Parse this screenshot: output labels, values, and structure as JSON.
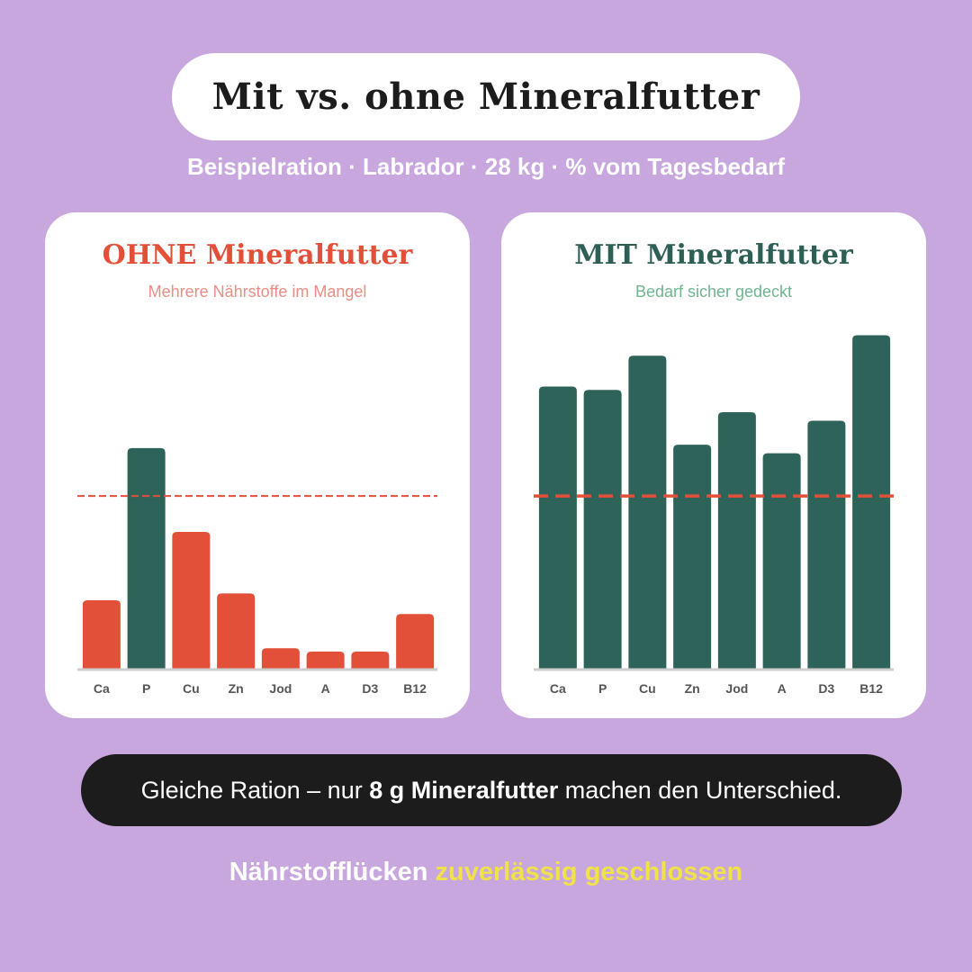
{
  "title": "Mit vs. ohne Mineralfutter",
  "subtitle": "Beispielration · Labrador · 28 kg · % vom Tagesbedarf",
  "colors": {
    "background": "#c7a7dd",
    "deficit": "#e3503a",
    "sufficient": "#2d6358",
    "reference_line": "#e3503a",
    "highlight": "#f1e24a"
  },
  "chart_data": [
    {
      "type": "bar",
      "title": "OHNE Mineralfutter",
      "subtitle": "Mehrere Nährstoffe im Mangel",
      "categories": [
        "Ca",
        "P",
        "Cu",
        "Zn",
        "Jod",
        "A",
        "D3",
        "B12"
      ],
      "values": [
        40,
        129,
        80,
        44,
        12,
        10,
        10,
        32
      ],
      "bar_colors": [
        "#e3503a",
        "#2d6358",
        "#e3503a",
        "#e3503a",
        "#e3503a",
        "#e3503a",
        "#e3503a",
        "#e3503a"
      ],
      "reference_line": 101,
      "ylim": [
        0,
        200
      ],
      "grid": false
    },
    {
      "type": "bar",
      "title": "MIT Mineralfutter",
      "subtitle": "Bedarf sicher gedeckt",
      "categories": [
        "Ca",
        "P",
        "Cu",
        "Zn",
        "Jod",
        "A",
        "D3",
        "B12"
      ],
      "values": [
        165,
        163,
        183,
        131,
        150,
        126,
        145,
        195
      ],
      "bar_colors": [
        "#2d6358",
        "#2d6358",
        "#2d6358",
        "#2d6358",
        "#2d6358",
        "#2d6358",
        "#2d6358",
        "#2d6358"
      ],
      "reference_line": 101,
      "ylim": [
        0,
        200
      ],
      "grid": false
    }
  ],
  "note": {
    "part1": "Gleiche Ration – nur ",
    "part2": "8 g Mineralfutter",
    "part3": " machen den Unterschied."
  },
  "footer": {
    "part1": "Nährstofflücken ",
    "highlight": "zuverlässig geschlossen"
  }
}
